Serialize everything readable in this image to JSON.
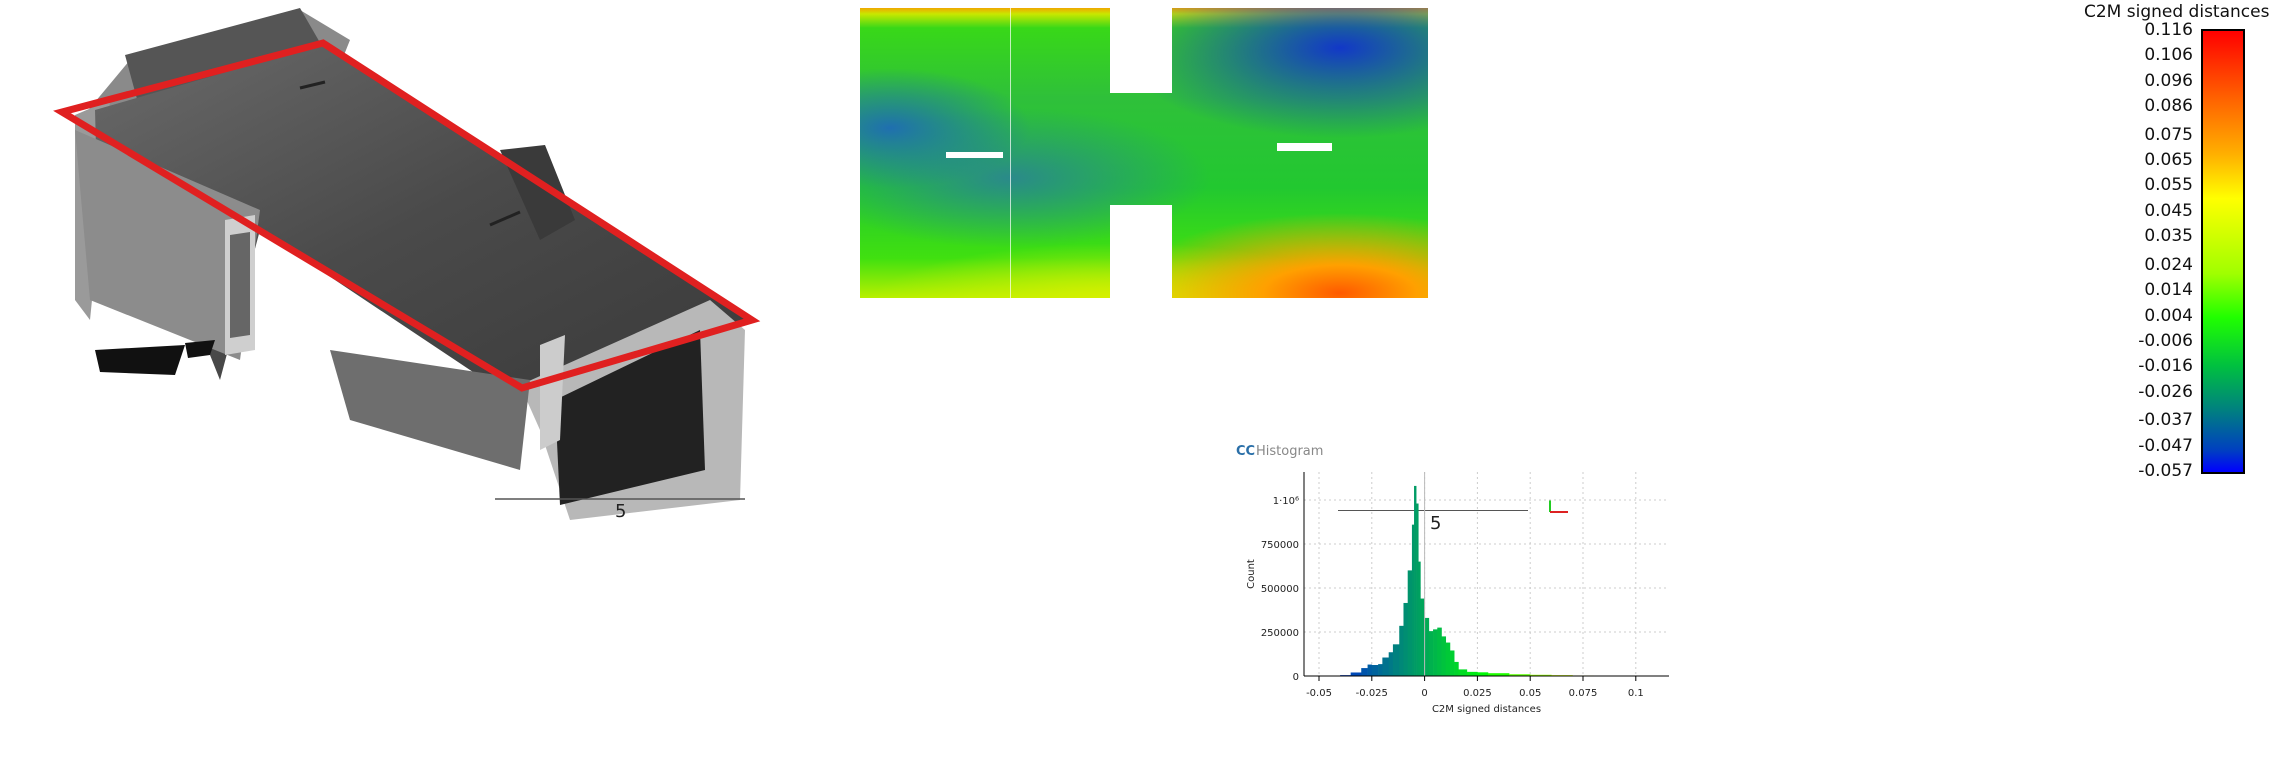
{
  "viewer_3d": {
    "scale_label": "5",
    "section_outline_color": "#e02020"
  },
  "heatmap_view": {
    "scalar_field_title": "C2M signed distances",
    "scale_label": "5",
    "colorbar_labels": [
      "0.116",
      "0.106",
      "0.096",
      "0.086",
      "0.075",
      "0.065",
      "0.055",
      "0.045",
      "0.035",
      "0.024",
      "0.014",
      "0.004",
      "-0.006",
      "-0.016",
      "-0.026",
      "-0.037",
      "-0.047",
      "-0.057"
    ],
    "colorbar_range": [
      -0.057,
      0.116
    ],
    "colormap": [
      "#0000ff",
      "#008080",
      "#00ff00",
      "#ffff00",
      "#ff0000"
    ]
  },
  "histogram": {
    "window_title": "Histogram",
    "chart_data": {
      "type": "bar",
      "xlabel": "C2M signed distances",
      "ylabel": "Count",
      "xlim": [
        -0.055,
        0.115
      ],
      "ylim": [
        0,
        1150000
      ],
      "grid": true,
      "x_ticks": [
        "-0.05",
        "-0.025",
        "0",
        "0.025",
        "0.05",
        "0.075",
        "0.1"
      ],
      "y_ticks": [
        "0",
        "250000",
        "500000",
        "750000",
        "1·10⁶"
      ],
      "x": [
        -0.04,
        -0.035,
        -0.03,
        -0.027,
        -0.025,
        -0.022,
        -0.02,
        -0.017,
        -0.015,
        -0.012,
        -0.01,
        -0.008,
        -0.006,
        -0.005,
        -0.004,
        -0.003,
        -0.002,
        0,
        0.002,
        0.004,
        0.006,
        0.008,
        0.01,
        0.012,
        0.014,
        0.016,
        0.02,
        0.025,
        0.03,
        0.04,
        0.05,
        0.06,
        0.07,
        0.08,
        0.085
      ],
      "values": [
        0,
        10000,
        30000,
        60000,
        70000,
        55000,
        80000,
        130000,
        140000,
        220000,
        350000,
        480000,
        720000,
        1000000,
        1160000,
        800000,
        500000,
        380000,
        280000,
        230000,
        300000,
        250000,
        200000,
        180000,
        110000,
        50000,
        25000,
        22000,
        20000,
        12000,
        8000,
        6000,
        4000,
        2000,
        0
      ]
    }
  }
}
